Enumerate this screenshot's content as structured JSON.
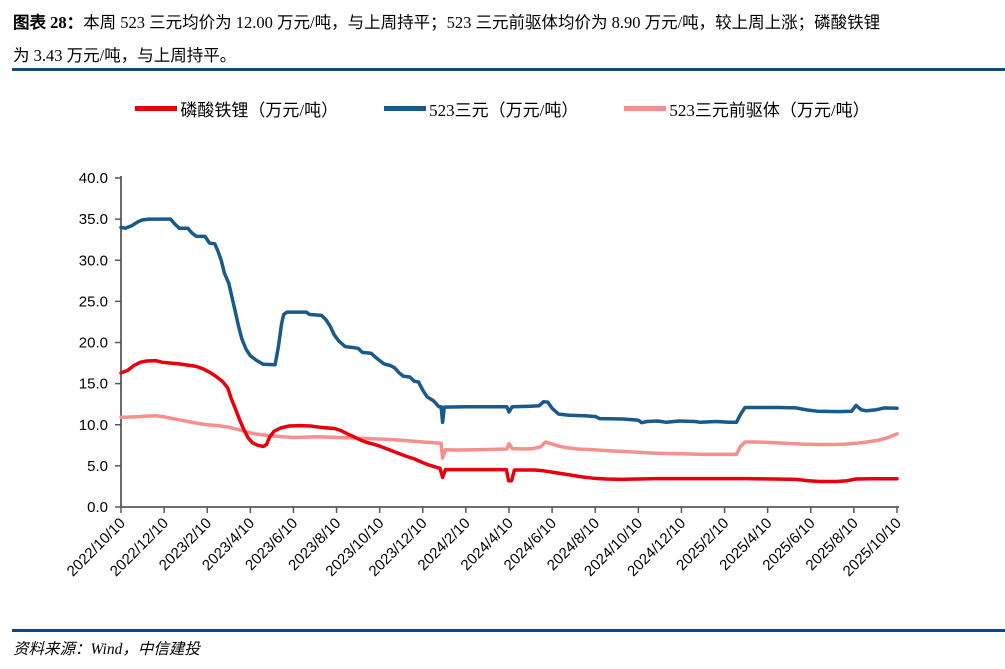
{
  "header": {
    "prefix": "图表 28：",
    "line1": "本周 523 三元均价为 12.00 万元/吨，与上周持平；523 三元前驱体均价为 8.90 万元/吨，较上周上涨；磷酸铁锂",
    "line2": "为 3.43 万元/吨，与上周持平。"
  },
  "legend": {
    "items": [
      {
        "label": "磷酸铁锂（万元/吨）",
        "color": "#e8000d"
      },
      {
        "label": "523三元（万元/吨）",
        "color": "#1a5a8a"
      },
      {
        "label": "523三元前驱体（万元/吨）",
        "color": "#f5908f"
      }
    ]
  },
  "footer": {
    "source": "资料来源：Wind，中信建投"
  },
  "accent": {
    "rule_color": "#17476e",
    "axis_color": "#595959",
    "text_color": "#000000"
  },
  "chart_data": {
    "type": "line",
    "grid": false,
    "legend_position": "top",
    "ylim": [
      0,
      40
    ],
    "y_tick_step": 5,
    "y_tick_labels": [
      "0.0",
      "5.0",
      "10.0",
      "15.0",
      "20.0",
      "25.0",
      "30.0",
      "35.0",
      "40.0"
    ],
    "xlim_months": [
      0,
      36
    ],
    "x_tick_months": [
      0,
      2,
      4,
      6,
      8,
      10,
      12,
      14,
      16,
      18,
      20,
      22,
      24,
      26,
      28,
      30,
      32,
      34,
      36
    ],
    "x_tick_labels": [
      "2022/10/10",
      "2022/12/10",
      "2023/2/10",
      "2023/4/10",
      "2023/6/10",
      "2023/8/10",
      "2023/10/10",
      "2023/12/10",
      "2024/2/10",
      "2024/4/10",
      "2024/6/10",
      "2024/8/10",
      "2024/10/10",
      "2024/12/10",
      "2025/2/10",
      "2025/4/10",
      "2025/6/10",
      "2025/8/10",
      "2025/10/10"
    ],
    "series": [
      {
        "id": "precursor-523",
        "name": "523三元前驱体（万元/吨）",
        "color": "#f5908f",
        "z": 1,
        "latest": 8.9,
        "points": [
          [
            0,
            10.9
          ],
          [
            0.6,
            10.95
          ],
          [
            1.2,
            11.05
          ],
          [
            1.6,
            11.1
          ],
          [
            2.0,
            10.95
          ],
          [
            2.4,
            10.75
          ],
          [
            2.8,
            10.55
          ],
          [
            3.2,
            10.35
          ],
          [
            3.6,
            10.15
          ],
          [
            4.0,
            10.0
          ],
          [
            4.5,
            9.9
          ],
          [
            5.0,
            9.7
          ],
          [
            5.4,
            9.45
          ],
          [
            5.8,
            9.15
          ],
          [
            6.2,
            8.9
          ],
          [
            6.6,
            8.75
          ],
          [
            7.0,
            8.65
          ],
          [
            7.5,
            8.55
          ],
          [
            8.0,
            8.45
          ],
          [
            8.6,
            8.5
          ],
          [
            9.1,
            8.55
          ],
          [
            9.6,
            8.5
          ],
          [
            10.1,
            8.45
          ],
          [
            10.6,
            8.4
          ],
          [
            11.1,
            8.35
          ],
          [
            11.6,
            8.3
          ],
          [
            12.1,
            8.25
          ],
          [
            12.6,
            8.2
          ],
          [
            13.1,
            8.1
          ],
          [
            13.6,
            8.0
          ],
          [
            14.0,
            7.9
          ],
          [
            14.5,
            7.8
          ],
          [
            14.85,
            7.75
          ],
          [
            14.92,
            5.95
          ],
          [
            15.05,
            6.95
          ],
          [
            15.6,
            6.93
          ],
          [
            16.5,
            6.95
          ],
          [
            17.3,
            7.0
          ],
          [
            17.9,
            7.05
          ],
          [
            18.0,
            7.7
          ],
          [
            18.15,
            7.1
          ],
          [
            18.7,
            7.05
          ],
          [
            19.1,
            7.1
          ],
          [
            19.45,
            7.3
          ],
          [
            19.7,
            7.9
          ],
          [
            19.95,
            7.7
          ],
          [
            20.3,
            7.4
          ],
          [
            20.7,
            7.2
          ],
          [
            21.2,
            7.05
          ],
          [
            21.9,
            6.95
          ],
          [
            22.6,
            6.85
          ],
          [
            23.3,
            6.75
          ],
          [
            24.0,
            6.65
          ],
          [
            24.7,
            6.55
          ],
          [
            25.4,
            6.5
          ],
          [
            26.2,
            6.45
          ],
          [
            27.0,
            6.4
          ],
          [
            28.0,
            6.4
          ],
          [
            28.55,
            6.4
          ],
          [
            28.75,
            7.4
          ],
          [
            28.95,
            7.9
          ],
          [
            29.4,
            7.9
          ],
          [
            30.0,
            7.85
          ],
          [
            30.8,
            7.75
          ],
          [
            31.6,
            7.65
          ],
          [
            32.4,
            7.6
          ],
          [
            33.0,
            7.6
          ],
          [
            33.6,
            7.65
          ],
          [
            34.1,
            7.75
          ],
          [
            34.6,
            7.9
          ],
          [
            35.1,
            8.1
          ],
          [
            35.6,
            8.45
          ],
          [
            36,
            8.9
          ]
        ]
      },
      {
        "id": "ncm-523",
        "name": "523三元（万元/吨）",
        "color": "#1a5a8a",
        "z": 2,
        "latest": 12.0,
        "points": [
          [
            0,
            34.0
          ],
          [
            0.2,
            33.9
          ],
          [
            0.5,
            34.2
          ],
          [
            0.8,
            34.7
          ],
          [
            1.0,
            34.9
          ],
          [
            1.3,
            35.0
          ],
          [
            2.3,
            35.0
          ],
          [
            2.5,
            34.4
          ],
          [
            2.7,
            33.9
          ],
          [
            3.1,
            33.9
          ],
          [
            3.3,
            33.3
          ],
          [
            3.5,
            32.9
          ],
          [
            3.9,
            32.9
          ],
          [
            4.1,
            32.1
          ],
          [
            4.35,
            32.0
          ],
          [
            4.5,
            31.1
          ],
          [
            4.65,
            30.0
          ],
          [
            4.8,
            28.4
          ],
          [
            5.0,
            27.2
          ],
          [
            5.15,
            25.5
          ],
          [
            5.3,
            23.8
          ],
          [
            5.45,
            22.0
          ],
          [
            5.6,
            20.5
          ],
          [
            5.8,
            19.2
          ],
          [
            6.0,
            18.4
          ],
          [
            6.3,
            17.8
          ],
          [
            6.6,
            17.35
          ],
          [
            7.15,
            17.3
          ],
          [
            7.3,
            19.5
          ],
          [
            7.45,
            22.3
          ],
          [
            7.55,
            23.4
          ],
          [
            7.7,
            23.7
          ],
          [
            8.6,
            23.7
          ],
          [
            8.75,
            23.4
          ],
          [
            9.3,
            23.3
          ],
          [
            9.5,
            22.8
          ],
          [
            9.7,
            22.0
          ],
          [
            9.9,
            20.9
          ],
          [
            10.1,
            20.2
          ],
          [
            10.4,
            19.5
          ],
          [
            10.7,
            19.4
          ],
          [
            11.0,
            19.3
          ],
          [
            11.2,
            18.8
          ],
          [
            11.6,
            18.7
          ],
          [
            11.9,
            18.0
          ],
          [
            12.2,
            17.4
          ],
          [
            12.5,
            17.2
          ],
          [
            12.7,
            16.9
          ],
          [
            12.9,
            16.3
          ],
          [
            13.1,
            15.9
          ],
          [
            13.4,
            15.8
          ],
          [
            13.6,
            15.3
          ],
          [
            13.8,
            15.2
          ],
          [
            14.0,
            14.2
          ],
          [
            14.2,
            13.4
          ],
          [
            14.5,
            12.9
          ],
          [
            14.75,
            12.2
          ],
          [
            14.85,
            12.2
          ],
          [
            14.92,
            10.3
          ],
          [
            15.0,
            12.15
          ],
          [
            16.0,
            12.2
          ],
          [
            17.0,
            12.2
          ],
          [
            17.9,
            12.2
          ],
          [
            18.0,
            11.55
          ],
          [
            18.15,
            12.2
          ],
          [
            19.0,
            12.25
          ],
          [
            19.4,
            12.3
          ],
          [
            19.6,
            12.8
          ],
          [
            19.8,
            12.75
          ],
          [
            20.0,
            12.0
          ],
          [
            20.3,
            11.3
          ],
          [
            20.8,
            11.15
          ],
          [
            21.5,
            11.1
          ],
          [
            22.0,
            11.0
          ],
          [
            22.2,
            10.75
          ],
          [
            23.3,
            10.7
          ],
          [
            24.0,
            10.55
          ],
          [
            24.15,
            10.25
          ],
          [
            24.4,
            10.4
          ],
          [
            24.9,
            10.45
          ],
          [
            25.3,
            10.3
          ],
          [
            25.9,
            10.45
          ],
          [
            26.6,
            10.4
          ],
          [
            26.9,
            10.3
          ],
          [
            27.6,
            10.4
          ],
          [
            28.2,
            10.3
          ],
          [
            28.55,
            10.3
          ],
          [
            28.75,
            11.3
          ],
          [
            28.95,
            12.1
          ],
          [
            30.5,
            12.1
          ],
          [
            31.3,
            12.05
          ],
          [
            31.8,
            11.8
          ],
          [
            32.3,
            11.65
          ],
          [
            33.3,
            11.6
          ],
          [
            33.9,
            11.65
          ],
          [
            34.1,
            12.35
          ],
          [
            34.35,
            11.8
          ],
          [
            34.6,
            11.7
          ],
          [
            35.0,
            11.8
          ],
          [
            35.4,
            12.05
          ],
          [
            36,
            12.0
          ]
        ]
      },
      {
        "id": "lfp",
        "name": "磷酸铁锂（万元/吨）",
        "color": "#e8000d",
        "z": 3,
        "latest": 3.43,
        "points": [
          [
            0,
            16.3
          ],
          [
            0.3,
            16.6
          ],
          [
            0.6,
            17.2
          ],
          [
            0.9,
            17.6
          ],
          [
            1.2,
            17.75
          ],
          [
            1.6,
            17.8
          ],
          [
            1.9,
            17.6
          ],
          [
            2.3,
            17.5
          ],
          [
            2.7,
            17.4
          ],
          [
            3.1,
            17.25
          ],
          [
            3.5,
            17.1
          ],
          [
            3.8,
            16.8
          ],
          [
            4.1,
            16.4
          ],
          [
            4.4,
            15.9
          ],
          [
            4.7,
            15.3
          ],
          [
            4.95,
            14.5
          ],
          [
            5.1,
            13.3
          ],
          [
            5.3,
            12.0
          ],
          [
            5.5,
            10.6
          ],
          [
            5.7,
            9.4
          ],
          [
            5.9,
            8.4
          ],
          [
            6.1,
            7.8
          ],
          [
            6.35,
            7.5
          ],
          [
            6.6,
            7.35
          ],
          [
            6.75,
            7.6
          ],
          [
            6.9,
            8.5
          ],
          [
            7.1,
            9.2
          ],
          [
            7.4,
            9.6
          ],
          [
            7.8,
            9.85
          ],
          [
            8.3,
            9.9
          ],
          [
            8.8,
            9.85
          ],
          [
            9.2,
            9.7
          ],
          [
            9.6,
            9.6
          ],
          [
            9.9,
            9.55
          ],
          [
            10.2,
            9.3
          ],
          [
            10.5,
            8.9
          ],
          [
            10.8,
            8.55
          ],
          [
            11.1,
            8.15
          ],
          [
            11.4,
            7.85
          ],
          [
            11.7,
            7.65
          ],
          [
            12.0,
            7.4
          ],
          [
            12.4,
            7.0
          ],
          [
            12.8,
            6.6
          ],
          [
            13.2,
            6.2
          ],
          [
            13.6,
            5.85
          ],
          [
            14.0,
            5.4
          ],
          [
            14.3,
            5.1
          ],
          [
            14.6,
            4.85
          ],
          [
            14.8,
            4.7
          ],
          [
            14.92,
            3.6
          ],
          [
            15.05,
            4.55
          ],
          [
            15.6,
            4.55
          ],
          [
            17.0,
            4.55
          ],
          [
            17.88,
            4.55
          ],
          [
            17.98,
            3.2
          ],
          [
            18.12,
            3.2
          ],
          [
            18.25,
            4.5
          ],
          [
            19.2,
            4.5
          ],
          [
            19.6,
            4.4
          ],
          [
            20.1,
            4.2
          ],
          [
            20.7,
            3.95
          ],
          [
            21.3,
            3.7
          ],
          [
            21.9,
            3.5
          ],
          [
            22.5,
            3.4
          ],
          [
            23.2,
            3.35
          ],
          [
            24.0,
            3.4
          ],
          [
            24.8,
            3.45
          ],
          [
            26.0,
            3.45
          ],
          [
            27.5,
            3.45
          ],
          [
            29.0,
            3.45
          ],
          [
            30.3,
            3.4
          ],
          [
            31.3,
            3.35
          ],
          [
            31.9,
            3.2
          ],
          [
            32.4,
            3.1
          ],
          [
            33.2,
            3.1
          ],
          [
            33.7,
            3.2
          ],
          [
            34.1,
            3.4
          ],
          [
            34.8,
            3.43
          ],
          [
            36,
            3.43
          ]
        ]
      }
    ]
  }
}
